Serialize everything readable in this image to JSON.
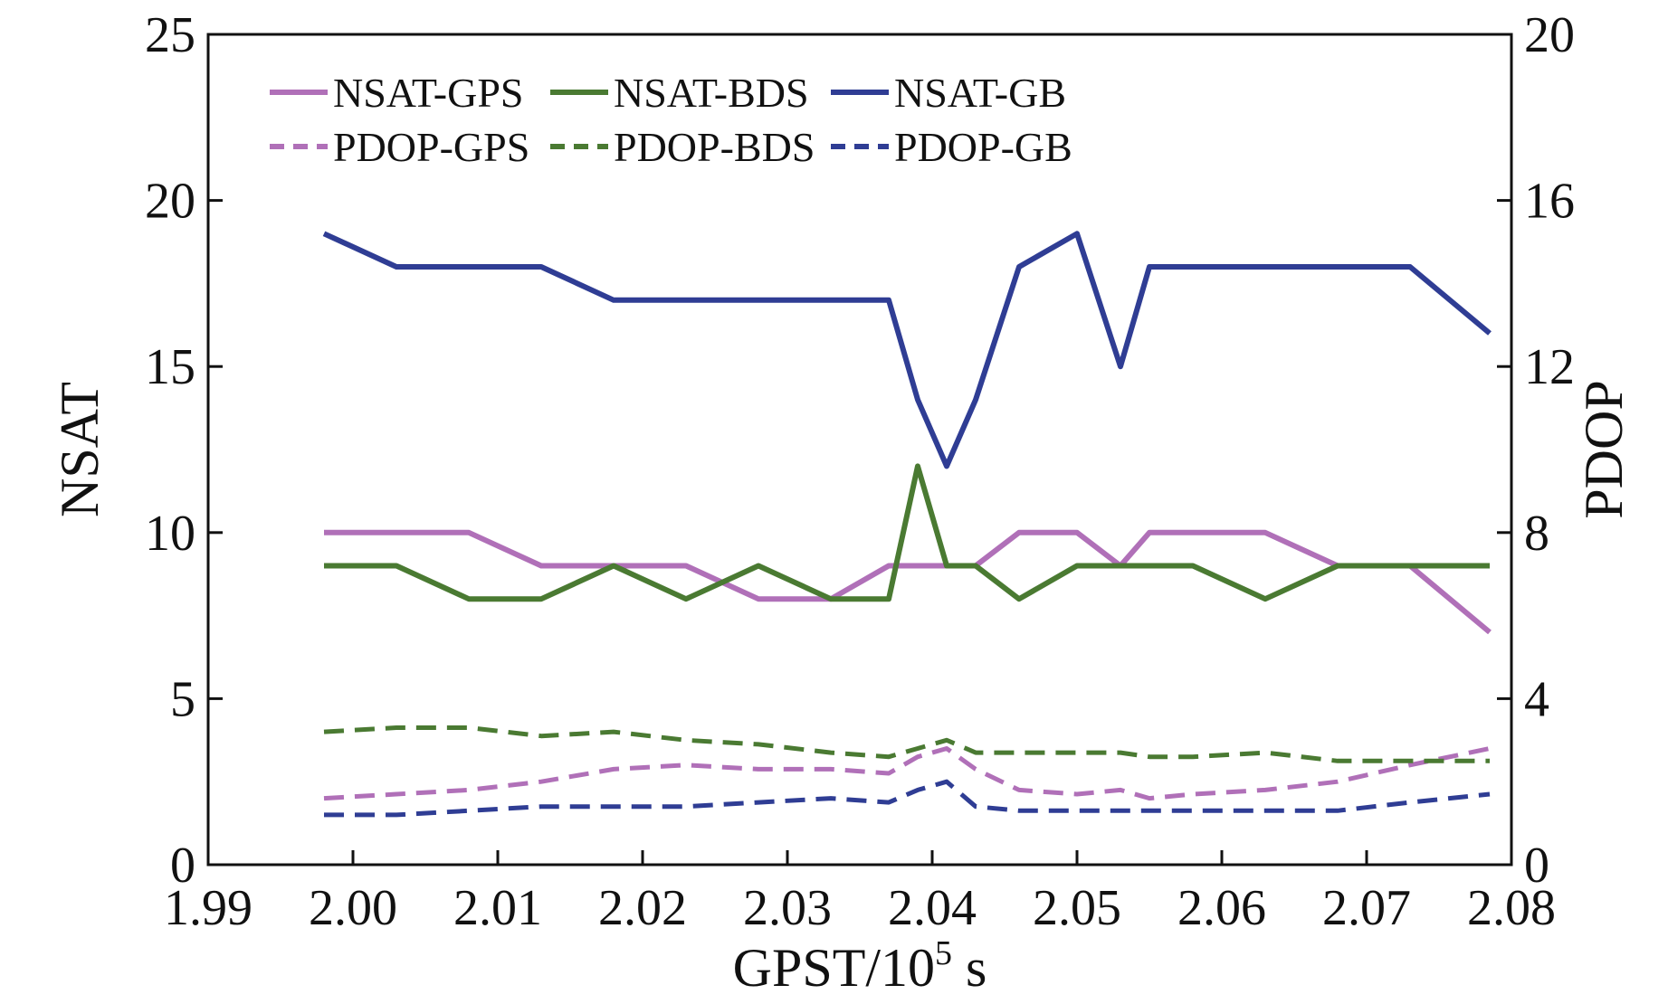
{
  "chart_data": {
    "type": "line",
    "title": "",
    "xlabel": "GPST/10",
    "xlabel_superscript": "5",
    "xlabel_suffix": " s",
    "ylabel": "NSAT",
    "y2label": "PDOP",
    "xlim": [
      1.99,
      2.08
    ],
    "ylim": [
      0,
      25
    ],
    "y2lim": [
      0,
      20
    ],
    "x_ticks": [
      "1.99",
      "2.00",
      "2.01",
      "2.02",
      "2.03",
      "2.04",
      "2.05",
      "2.06",
      "2.07",
      "2.08"
    ],
    "y_ticks": [
      "0",
      "5",
      "10",
      "15",
      "20",
      "25"
    ],
    "y2_ticks": [
      "0",
      "4",
      "8",
      "12",
      "16",
      "20"
    ],
    "grid": false,
    "legend_position": "top-left",
    "x": [
      1.998,
      2.003,
      2.008,
      2.013,
      2.018,
      2.023,
      2.028,
      2.033,
      2.037,
      2.039,
      2.041,
      2.043,
      2.046,
      2.05,
      2.053,
      2.055,
      2.058,
      2.063,
      2.068,
      2.073,
      2.0785
    ],
    "series": [
      {
        "name": "NSAT-GPS",
        "axis": "left",
        "style": "solid",
        "color": "#b070b8",
        "values": [
          10,
          10,
          10,
          9,
          9,
          9,
          8,
          8,
          9,
          9,
          9,
          9,
          10,
          10,
          9,
          10,
          10,
          10,
          9,
          9,
          7
        ]
      },
      {
        "name": "NSAT-BDS",
        "axis": "left",
        "style": "solid",
        "color": "#4a7a32",
        "values": [
          9,
          9,
          8,
          8,
          9,
          8,
          9,
          8,
          8,
          12,
          9,
          9,
          8,
          9,
          9,
          9,
          9,
          8,
          9,
          9,
          9
        ]
      },
      {
        "name": "NSAT-GB",
        "axis": "left",
        "style": "solid",
        "color": "#2f3d94",
        "values": [
          19,
          18,
          18,
          18,
          17,
          17,
          17,
          17,
          17,
          14,
          12,
          14,
          18,
          19,
          15,
          18,
          18,
          18,
          18,
          18,
          16
        ]
      },
      {
        "name": "PDOP-GPS",
        "axis": "right",
        "style": "dashed",
        "color": "#b070b8",
        "values": [
          1.6,
          1.7,
          1.8,
          2.0,
          2.3,
          2.4,
          2.3,
          2.3,
          2.2,
          2.6,
          2.8,
          2.3,
          1.8,
          1.7,
          1.8,
          1.6,
          1.7,
          1.8,
          2.0,
          2.4,
          2.8
        ]
      },
      {
        "name": "PDOP-BDS",
        "axis": "right",
        "style": "dashed",
        "color": "#4a7a32",
        "values": [
          3.2,
          3.3,
          3.3,
          3.1,
          3.2,
          3.0,
          2.9,
          2.7,
          2.6,
          2.8,
          3.0,
          2.7,
          2.7,
          2.7,
          2.7,
          2.6,
          2.6,
          2.7,
          2.5,
          2.5,
          2.5
        ]
      },
      {
        "name": "PDOP-GB",
        "axis": "right",
        "style": "dashed",
        "color": "#2f3d94",
        "values": [
          1.2,
          1.2,
          1.3,
          1.4,
          1.4,
          1.4,
          1.5,
          1.6,
          1.5,
          1.8,
          2.0,
          1.4,
          1.3,
          1.3,
          1.3,
          1.3,
          1.3,
          1.3,
          1.3,
          1.5,
          1.7
        ]
      }
    ]
  }
}
